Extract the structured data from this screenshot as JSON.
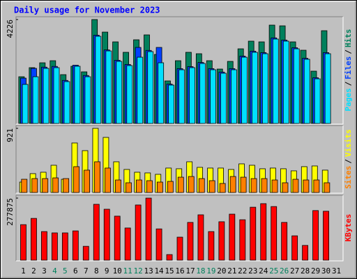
{
  "title": "Daily usage for November 2023",
  "legend_separator": "/",
  "chart_data": [
    {
      "type": "bar",
      "ylim": [
        0,
        4226
      ],
      "yticks": [
        4226
      ],
      "series": [
        {
          "name": "Hits",
          "color": "#00805c",
          "values": [
            1900,
            2269,
            2467,
            2552,
            1985,
            2326,
            2099,
            4226,
            3715,
            3318,
            2893,
            3403,
            3602,
            2808,
            1730,
            2552,
            2893,
            2836,
            2552,
            2212,
            2524,
            3035,
            3347,
            3318,
            3999,
            3970,
            3318,
            2978,
            2127,
            3772,
            null
          ]
        },
        {
          "name": "Files",
          "color": "#0040ff",
          "values": [
            1843,
            2240,
            2290,
            2320,
            1750,
            2370,
            1950,
            3590,
            2990,
            2570,
            2400,
            3092,
            2970,
            3092,
            1600,
            2230,
            2310,
            2480,
            2230,
            2090,
            2230,
            2740,
            2940,
            2880,
            3480,
            3390,
            3080,
            2650,
            1860,
            2880,
            null
          ]
        },
        {
          "name": "Pages",
          "color": "#00e0ff",
          "values": [
            1588,
            1900,
            2240,
            2269,
            1702,
            2326,
            1900,
            3545,
            2949,
            2524,
            2354,
            2694,
            2921,
            2467,
            1560,
            2184,
            2269,
            2439,
            2184,
            2042,
            2184,
            2694,
            2893,
            2836,
            3432,
            3347,
            3035,
            2609,
            1815,
            2836,
            null
          ]
        }
      ]
    },
    {
      "type": "bar",
      "ylim": [
        0,
        921
      ],
      "yticks": [
        921
      ],
      "series": [
        {
          "name": "Visits",
          "color": "#ffff00",
          "values": [
            150,
            271,
            291,
            391,
            190,
            711,
            601,
            921,
            791,
            441,
            331,
            291,
            281,
            261,
            351,
            341,
            441,
            361,
            351,
            351,
            331,
            411,
            391,
            341,
            351,
            341,
            311,
            371,
            381,
            321,
            null
          ]
        },
        {
          "name": "Sites",
          "color": "#ff8000",
          "values": [
            190,
            200,
            200,
            210,
            200,
            371,
            321,
            441,
            351,
            180,
            140,
            180,
            170,
            150,
            160,
            220,
            230,
            200,
            170,
            130,
            230,
            220,
            200,
            200,
            180,
            140,
            190,
            180,
            180,
            140,
            null
          ]
        }
      ]
    },
    {
      "type": "bar",
      "ylim": [
        0,
        277875
      ],
      "yticks": [
        277875
      ],
      "categories": [
        "1",
        "2",
        "3",
        "4",
        "5",
        "6",
        "7",
        "8",
        "9",
        "10",
        "11",
        "12",
        "13",
        "14",
        "15",
        "16",
        "17",
        "18",
        "19",
        "20",
        "21",
        "22",
        "23",
        "24",
        "25",
        "26",
        "27",
        "28",
        "29",
        "30",
        "31"
      ],
      "category_colors": [
        "#000000",
        "#000000",
        "#000000",
        "#00805c",
        "#00805c",
        "#000000",
        "#000000",
        "#000000",
        "#000000",
        "#000000",
        "#00805c",
        "#00805c",
        "#000000",
        "#000000",
        "#000000",
        "#000000",
        "#000000",
        "#00805c",
        "#00805c",
        "#000000",
        "#000000",
        "#000000",
        "#000000",
        "#000000",
        "#00805c",
        "#00805c",
        "#000000",
        "#000000",
        "#000000",
        "#000000",
        "#000000"
      ],
      "series": [
        {
          "name": "KBytes",
          "color": "#ff0000",
          "values": [
            159000,
            187000,
            128000,
            122000,
            122000,
            131000,
            62000,
            250000,
            228000,
            197000,
            144000,
            247000,
            277875,
            140000,
            25000,
            103000,
            169000,
            203000,
            128000,
            172000,
            206000,
            181000,
            237000,
            253000,
            240000,
            169000,
            109000,
            66000,
            222000,
            219000,
            null
          ]
        }
      ]
    }
  ]
}
